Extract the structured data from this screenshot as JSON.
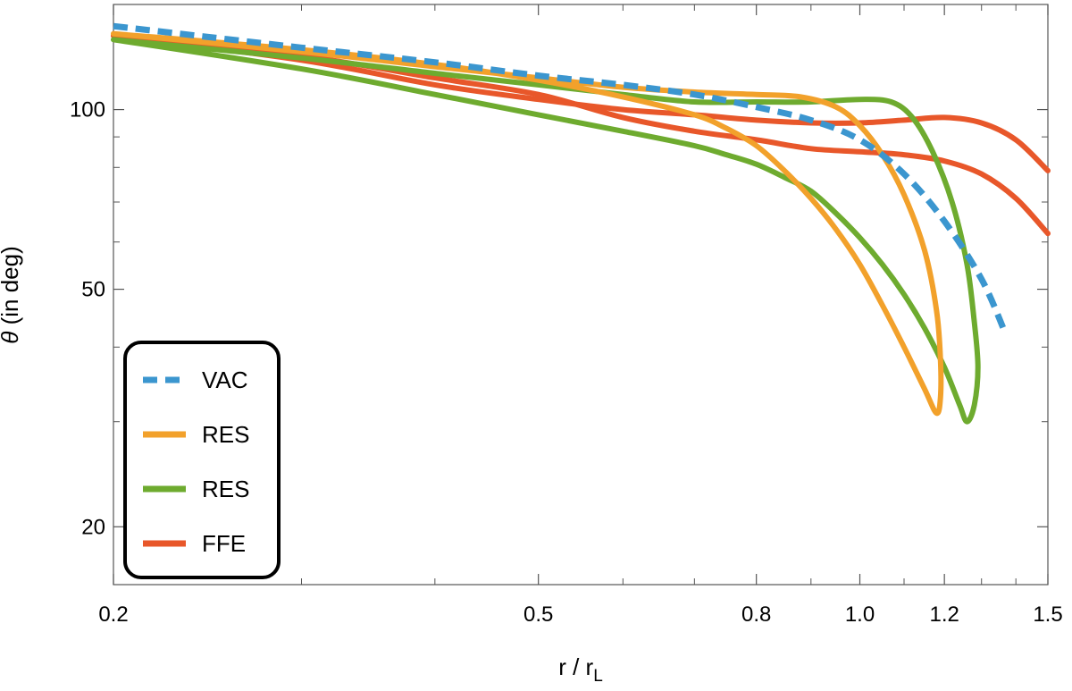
{
  "chart_data": {
    "type": "line",
    "xlabel": "r / r",
    "xlabel_sub": "L",
    "ylabel_symbol": "θ",
    "ylabel": " (in deg)",
    "x_scale": "log",
    "y_scale": "log",
    "xlim": [
      0.2,
      1.5
    ],
    "ylim": [
      16,
      150
    ],
    "grid": false,
    "legend_position": "bottom-left",
    "x_ticks": [
      {
        "value": 0.2,
        "label": "0.2"
      },
      {
        "value": 0.5,
        "label": "0.5"
      },
      {
        "value": 0.8,
        "label": "0.8"
      },
      {
        "value": 1.0,
        "label": "1.0"
      },
      {
        "value": 1.2,
        "label": "1.2"
      },
      {
        "value": 1.5,
        "label": "1.5"
      }
    ],
    "x_minor_ticks": [
      0.3,
      0.4,
      0.6,
      0.7,
      0.9,
      1.1,
      1.3,
      1.4
    ],
    "y_ticks": [
      {
        "value": 20,
        "label": "20"
      },
      {
        "value": 50,
        "label": "50"
      },
      {
        "value": 100,
        "label": "100"
      }
    ],
    "y_minor_ticks": [
      30,
      40,
      60,
      70,
      80,
      90
    ],
    "series": [
      {
        "name": "VAC",
        "color": "#3b96cf",
        "dash": true,
        "points": [
          [
            0.2,
            138
          ],
          [
            0.3,
            127
          ],
          [
            0.4,
            120
          ],
          [
            0.5,
            114
          ],
          [
            0.6,
            110
          ],
          [
            0.7,
            106
          ],
          [
            0.8,
            101
          ],
          [
            0.9,
            96
          ],
          [
            1.0,
            89
          ],
          [
            1.1,
            78
          ],
          [
            1.2,
            65
          ],
          [
            1.3,
            52
          ],
          [
            1.37,
            42
          ]
        ]
      },
      {
        "name": "RES",
        "color": "#f2a12b",
        "dash": false,
        "points": [
          [
            0.2,
            134
          ],
          [
            0.3,
            125
          ],
          [
            0.4,
            118
          ],
          [
            0.5,
            113
          ],
          [
            0.6,
            109
          ],
          [
            0.7,
            107
          ],
          [
            0.8,
            106
          ],
          [
            0.88,
            105
          ],
          [
            0.95,
            101
          ],
          [
            1.0,
            94
          ],
          [
            1.05,
            84
          ],
          [
            1.1,
            72
          ],
          [
            1.15,
            58
          ],
          [
            1.18,
            46
          ],
          [
            1.19,
            38
          ],
          [
            1.19,
            33
          ],
          [
            1.18,
            31
          ],
          [
            1.15,
            34
          ],
          [
            1.1,
            40
          ],
          [
            1.05,
            47
          ],
          [
            1.0,
            55
          ],
          [
            0.95,
            63
          ],
          [
            0.9,
            71
          ],
          [
            0.85,
            79
          ],
          [
            0.8,
            87
          ],
          [
            0.75,
            93
          ],
          [
            0.7,
            98
          ],
          [
            0.6,
            105
          ],
          [
            0.5,
            112
          ],
          [
            0.4,
            119
          ],
          [
            0.3,
            126
          ],
          [
            0.2,
            134
          ]
        ]
      },
      {
        "name": "RES",
        "color": "#6eab2f",
        "dash": false,
        "points": [
          [
            0.2,
            131
          ],
          [
            0.3,
            122
          ],
          [
            0.4,
            115
          ],
          [
            0.5,
            110
          ],
          [
            0.6,
            106
          ],
          [
            0.7,
            103
          ],
          [
            0.8,
            103
          ],
          [
            0.9,
            103
          ],
          [
            1.0,
            104
          ],
          [
            1.07,
            103
          ],
          [
            1.12,
            97
          ],
          [
            1.17,
            85
          ],
          [
            1.22,
            70
          ],
          [
            1.26,
            55
          ],
          [
            1.28,
            44
          ],
          [
            1.29,
            37
          ],
          [
            1.28,
            32
          ],
          [
            1.26,
            30
          ],
          [
            1.24,
            32
          ],
          [
            1.2,
            37
          ],
          [
            1.15,
            43
          ],
          [
            1.1,
            49
          ],
          [
            1.05,
            55
          ],
          [
            1.0,
            61
          ],
          [
            0.95,
            67
          ],
          [
            0.9,
            73
          ],
          [
            0.85,
            77
          ],
          [
            0.8,
            81
          ],
          [
            0.75,
            84
          ],
          [
            0.7,
            87
          ],
          [
            0.6,
            92
          ],
          [
            0.5,
            98
          ],
          [
            0.4,
            106
          ],
          [
            0.3,
            117
          ],
          [
            0.2,
            131
          ]
        ]
      },
      {
        "name": "FFE",
        "color": "#e8572a",
        "dash": false,
        "points": [
          [
            0.2,
            133
          ],
          [
            0.3,
            121
          ],
          [
            0.4,
            110
          ],
          [
            0.5,
            104
          ],
          [
            0.6,
            100
          ],
          [
            0.7,
            98
          ],
          [
            0.8,
            96
          ],
          [
            0.9,
            95
          ],
          [
            1.0,
            95
          ],
          [
            1.1,
            96
          ],
          [
            1.2,
            97
          ],
          [
            1.3,
            95
          ],
          [
            1.4,
            89
          ],
          [
            1.5,
            79
          ]
        ]
      },
      {
        "name": "FFE",
        "color": "#e8572a",
        "dash": false,
        "legend": false,
        "points": [
          [
            0.2,
            133
          ],
          [
            0.3,
            123
          ],
          [
            0.4,
            113
          ],
          [
            0.5,
            106
          ],
          [
            0.6,
            97
          ],
          [
            0.7,
            92
          ],
          [
            0.8,
            89
          ],
          [
            0.9,
            86
          ],
          [
            1.0,
            85
          ],
          [
            1.1,
            84
          ],
          [
            1.2,
            82
          ],
          [
            1.3,
            78
          ],
          [
            1.4,
            71
          ],
          [
            1.5,
            62
          ]
        ]
      }
    ],
    "legend": [
      {
        "label": "VAC",
        "color": "#3b96cf",
        "dash": true
      },
      {
        "label": "RES",
        "color": "#f2a12b",
        "dash": false
      },
      {
        "label": "RES",
        "color": "#6eab2f",
        "dash": false
      },
      {
        "label": "FFE",
        "color": "#e8572a",
        "dash": false
      }
    ]
  }
}
